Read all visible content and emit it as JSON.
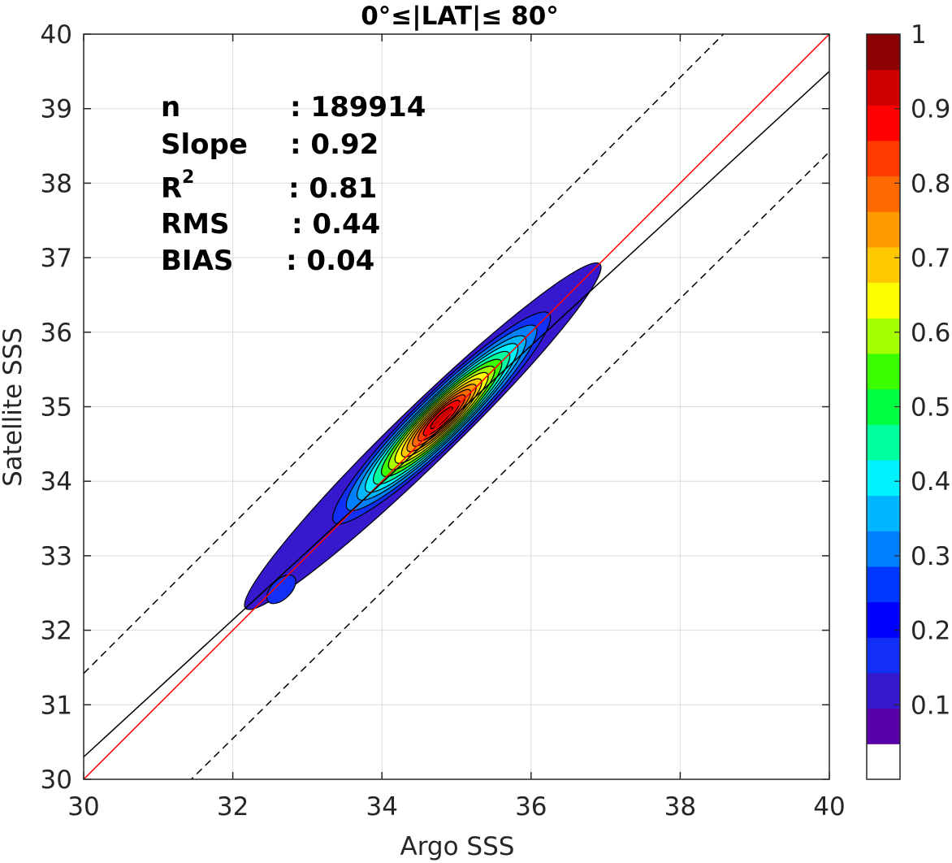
{
  "chart_data": {
    "type": "heatmap",
    "title": "0°≤|LAT|≤ 80°",
    "xlabel": "Argo SSS",
    "ylabel": "Satellite SSS",
    "xlim": [
      30,
      40
    ],
    "ylim": [
      30,
      40
    ],
    "xticks": [
      "30",
      "32",
      "34",
      "36",
      "38",
      "40"
    ],
    "yticks": [
      "30",
      "31",
      "32",
      "33",
      "34",
      "35",
      "36",
      "37",
      "38",
      "39",
      "40"
    ],
    "grid": true,
    "stats": [
      {
        "key": "n",
        "label": "n",
        "value": ": 189914"
      },
      {
        "key": "slope",
        "label": "Slope",
        "value": ": 0.92"
      },
      {
        "key": "r2",
        "label": "R",
        "sup": "2",
        "value": ": 0.81"
      },
      {
        "key": "rms",
        "label": "RMS",
        "value": ": 0.44"
      },
      {
        "key": "bias",
        "label": "BIAS",
        "value": ": 0.04"
      }
    ],
    "reference_lines": [
      {
        "name": "one-to-one",
        "color": "#ff0000",
        "style": "solid",
        "points": [
          [
            30,
            30
          ],
          [
            40,
            40
          ]
        ]
      },
      {
        "name": "regression",
        "color": "#000000",
        "style": "solid",
        "points": [
          [
            30,
            30.3
          ],
          [
            40,
            39.5
          ]
        ]
      },
      {
        "name": "upper-bound",
        "color": "#000000",
        "style": "dashed",
        "points": [
          [
            30,
            31.42
          ],
          [
            40,
            41.42
          ]
        ]
      },
      {
        "name": "lower-bound",
        "color": "#000000",
        "style": "dashed",
        "points": [
          [
            30,
            28.58
          ],
          [
            40,
            38.42
          ]
        ]
      }
    ],
    "density": {
      "center": [
        34.8,
        34.85
      ],
      "principal_axis": [
        0.72,
        0.7
      ],
      "levels": [
        {
          "level": 0.05,
          "color": "#3718cc",
          "semi_major": 3.3,
          "semi_minor": 0.38
        },
        {
          "level": 0.15,
          "color": "#1230f5",
          "semi_major": 2.0,
          "semi_minor": 0.34
        },
        {
          "level": 0.25,
          "color": "#0080ff",
          "semi_major": 1.75,
          "semi_minor": 0.31
        },
        {
          "level": 0.35,
          "color": "#00b6ff",
          "semi_major": 1.55,
          "semi_minor": 0.28
        },
        {
          "level": 0.4,
          "color": "#00f2ff",
          "semi_major": 1.4,
          "semi_minor": 0.26
        },
        {
          "level": 0.45,
          "color": "#00ff9f",
          "semi_major": 1.25,
          "semi_minor": 0.24
        },
        {
          "level": 0.5,
          "color": "#3bff00",
          "semi_major": 1.1,
          "semi_minor": 0.22
        },
        {
          "level": 0.6,
          "color": "#a6ff00",
          "semi_major": 0.97,
          "semi_minor": 0.2
        },
        {
          "level": 0.65,
          "color": "#ffff00",
          "semi_major": 0.85,
          "semi_minor": 0.18
        },
        {
          "level": 0.7,
          "color": "#ffc800",
          "semi_major": 0.73,
          "semi_minor": 0.16
        },
        {
          "level": 0.75,
          "color": "#ff9900",
          "semi_major": 0.63,
          "semi_minor": 0.14
        },
        {
          "level": 0.8,
          "color": "#ff6a00",
          "semi_major": 0.53,
          "semi_minor": 0.12
        },
        {
          "level": 0.85,
          "color": "#ff3b00",
          "semi_major": 0.43,
          "semi_minor": 0.1
        },
        {
          "level": 0.9,
          "color": "#ff0000",
          "semi_major": 0.33,
          "semi_minor": 0.08
        },
        {
          "level": 0.95,
          "color": "#cc0000",
          "semi_major": 0.2,
          "semi_minor": 0.05
        }
      ],
      "secondary_peak": {
        "center": [
          32.65,
          32.55
        ],
        "level": 0.15,
        "color": "#1230f5"
      }
    },
    "colorbar": {
      "ticks": [
        "0.1",
        "0.2",
        "0.3",
        "0.4",
        "0.5",
        "0.6",
        "0.7",
        "0.8",
        "0.9",
        "1"
      ],
      "range": [
        0,
        1
      ],
      "colors": [
        "#ffffff",
        "#5a00a8",
        "#3718cc",
        "#1230f5",
        "#0000ff",
        "#0038ff",
        "#0080ff",
        "#00b6ff",
        "#00f2ff",
        "#00ff9f",
        "#00ff40",
        "#3bff00",
        "#a6ff00",
        "#ffff00",
        "#ffc800",
        "#ff9900",
        "#ff6a00",
        "#ff3b00",
        "#ff0000",
        "#cc0000",
        "#8b0000"
      ]
    }
  }
}
